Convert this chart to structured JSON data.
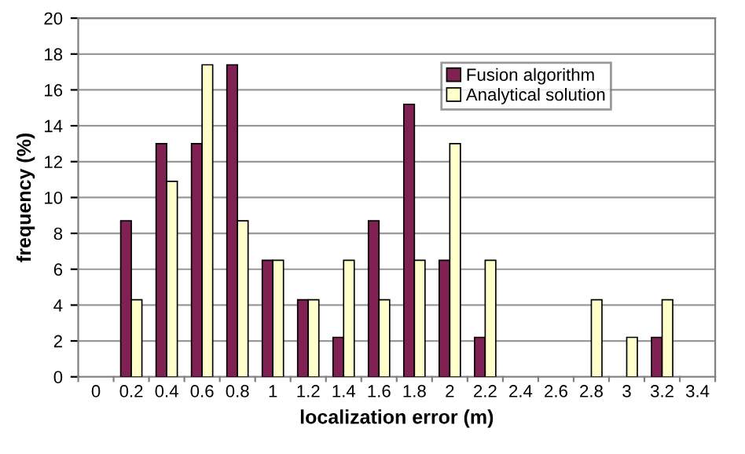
{
  "chart_data": {
    "type": "bar",
    "xlabel": "localization error (m)",
    "ylabel": "frequency (%)",
    "categories": [
      "0",
      "0.2",
      "0.4",
      "0.6",
      "0.8",
      "1",
      "1.2",
      "1.4",
      "1.6",
      "1.8",
      "2",
      "2.2",
      "2.4",
      "2.6",
      "2.8",
      "3",
      "3.2",
      "3.4"
    ],
    "series": [
      {
        "name": "Fusion algorithm",
        "color": "#7f2152",
        "values": [
          0,
          8.7,
          13.0,
          13.0,
          17.4,
          6.5,
          4.3,
          2.2,
          8.7,
          15.2,
          6.5,
          2.2,
          0,
          0,
          0,
          0,
          2.2,
          0
        ]
      },
      {
        "name": "Analytical solution",
        "color": "#ffffcc",
        "values": [
          0,
          4.3,
          10.9,
          17.4,
          8.7,
          6.5,
          4.3,
          6.5,
          4.3,
          6.5,
          13.0,
          6.5,
          0,
          0,
          4.3,
          2.2,
          4.3,
          0
        ]
      }
    ],
    "ylim": [
      0,
      20
    ],
    "yticks": [
      0,
      2,
      4,
      6,
      8,
      10,
      12,
      14,
      16,
      18,
      20
    ],
    "grid": "y",
    "legend": "top right"
  }
}
